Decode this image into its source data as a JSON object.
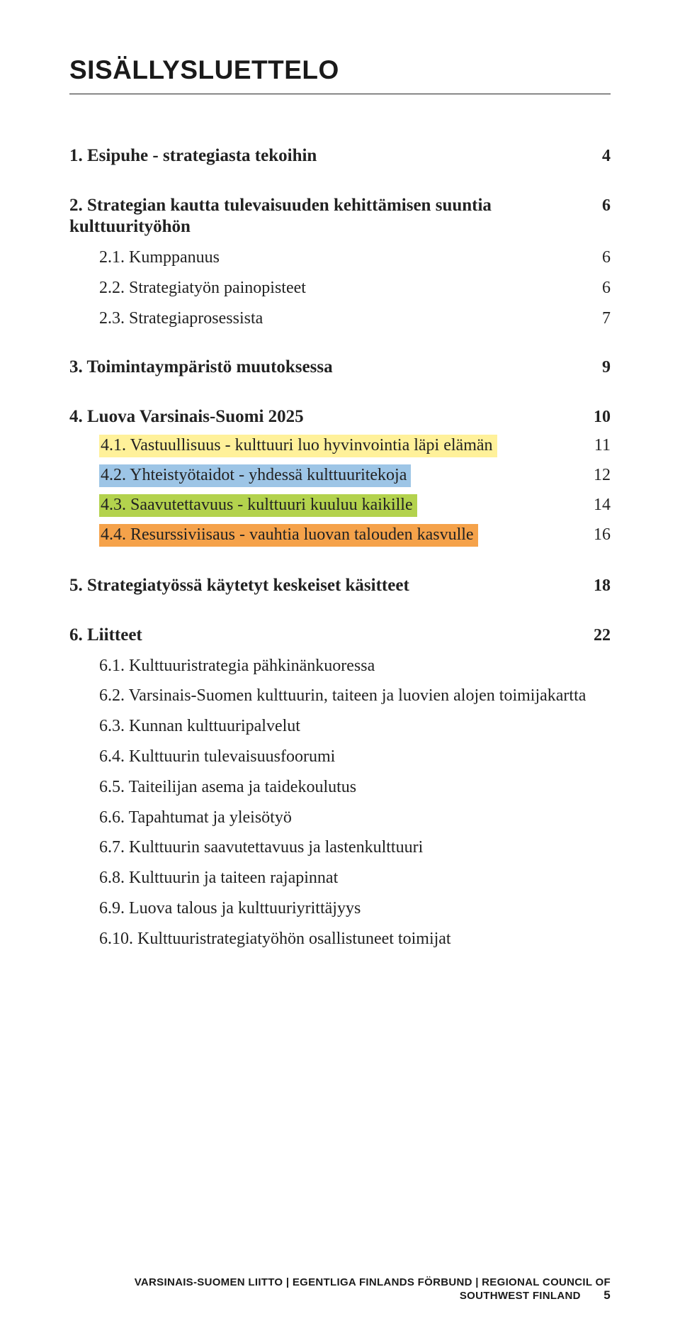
{
  "title": "SISÄLLYSLUETTELO",
  "colors": {
    "hl1": "#fff19a",
    "hl2": "#9dc5e6",
    "hl3": "#b3d24d",
    "hl4": "#f5a24a"
  },
  "toc": {
    "s1": {
      "label": "1. Esipuhe - strategiasta tekoihin",
      "page": "4"
    },
    "s2": {
      "label": "2. Strategian kautta tulevaisuuden kehittämisen suuntia kulttuurityöhön",
      "page": "6"
    },
    "s21": {
      "label": "2.1. Kumppanuus",
      "page": "6"
    },
    "s22": {
      "label": "2.2. Strategiatyön painopisteet",
      "page": "6"
    },
    "s23": {
      "label": "2.3. Strategiaprosessista",
      "page": "7"
    },
    "s3": {
      "label": "3. Toimintaympäristö muutoksessa",
      "page": "9"
    },
    "s4": {
      "label": "4. Luova Varsinais-Suomi 2025",
      "page": "10"
    },
    "s41": {
      "label": "4.1. Vastuullisuus - kulttuuri luo hyvinvointia läpi elämän",
      "page": "11"
    },
    "s42": {
      "label": "4.2. Yhteistyötaidot - yhdessä kulttuuritekoja",
      "page": "12"
    },
    "s43": {
      "label": "4.3. Saavutettavuus - kulttuuri kuuluu kaikille",
      "page": "14"
    },
    "s44": {
      "label": "4.4. Resurssiviisaus - vauhtia luovan talouden kasvulle",
      "page": "16"
    },
    "s5": {
      "label": "5. Strategiatyössä käytetyt keskeiset käsitteet",
      "page": "18"
    },
    "s6": {
      "label": "6. Liitteet",
      "page": "22"
    },
    "s61": {
      "label": "6.1. Kulttuuristrategia pähkinänkuoressa"
    },
    "s62": {
      "label": "6.2. Varsinais-Suomen kulttuurin, taiteen ja luovien alojen toimijakartta"
    },
    "s63": {
      "label": "6.3. Kunnan kulttuuripalvelut"
    },
    "s64": {
      "label": "6.4. Kulttuurin tulevaisuusfoorumi"
    },
    "s65": {
      "label": "6.5. Taiteilijan asema ja taidekoulutus"
    },
    "s66": {
      "label": "6.6. Tapahtumat ja yleisötyö"
    },
    "s67": {
      "label": "6.7. Kulttuurin saavutettavuus ja lastenkulttuuri"
    },
    "s68": {
      "label": "6.8. Kulttuurin ja taiteen rajapinnat"
    },
    "s69": {
      "label": "6.9. Luova talous ja kulttuuriyrittäjyys"
    },
    "s610": {
      "label": "6.10. Kulttuuristrategiatyöhön osallistuneet toimijat"
    }
  },
  "footer": {
    "text": "VARSINAIS-SUOMEN LIITTO | EGENTLIGA FINLANDS FÖRBUND | REGIONAL COUNCIL OF SOUTHWEST FINLAND",
    "page": "5"
  }
}
